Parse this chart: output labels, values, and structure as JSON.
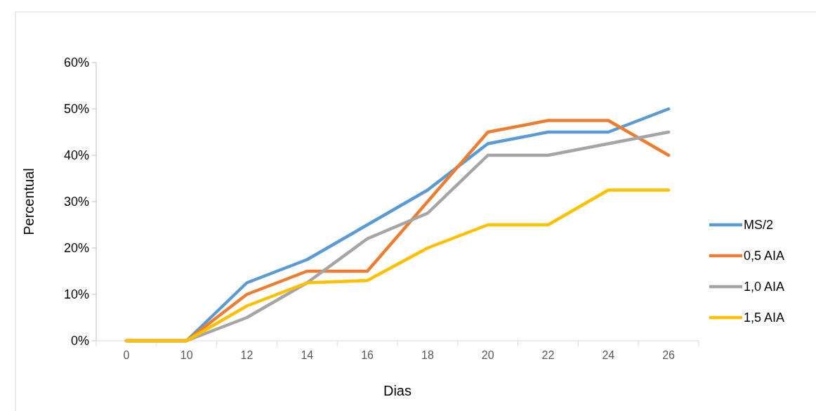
{
  "chart_data": {
    "type": "line",
    "xlabel": "Dias",
    "ylabel": "Percentual",
    "categories": [
      "0",
      "10",
      "12",
      "14",
      "16",
      "18",
      "20",
      "22",
      "24",
      "26"
    ],
    "series": [
      {
        "name": "MS/2",
        "color": "#5b9bd5",
        "values": [
          0,
          0,
          12.5,
          17.5,
          25,
          32.5,
          42.5,
          45,
          45,
          50
        ]
      },
      {
        "name": "0,5 AIA",
        "color": "#ed7d31",
        "values": [
          0,
          0,
          10,
          15,
          15,
          30,
          45,
          47.5,
          47.5,
          40
        ]
      },
      {
        "name": "1,0 AIA",
        "color": "#a5a5a5",
        "values": [
          0,
          0,
          5,
          12.5,
          22,
          27.5,
          40,
          40,
          42.5,
          45
        ]
      },
      {
        "name": "1,5 AIA",
        "color": "#ffc000",
        "values": [
          0,
          0,
          7.5,
          12.5,
          13,
          20,
          25,
          25,
          32.5,
          32.5
        ]
      }
    ],
    "ylim": [
      0,
      60
    ],
    "yticks": [
      {
        "value": 0,
        "label": "0%"
      },
      {
        "value": 10,
        "label": "10%"
      },
      {
        "value": 20,
        "label": "20%"
      },
      {
        "value": 30,
        "label": "30%"
      },
      {
        "value": 40,
        "label": "40%"
      },
      {
        "value": 50,
        "label": "50%"
      },
      {
        "value": 60,
        "label": "60%"
      }
    ],
    "grid": false,
    "legend": "right",
    "marker": "none",
    "line_style": "solid"
  }
}
